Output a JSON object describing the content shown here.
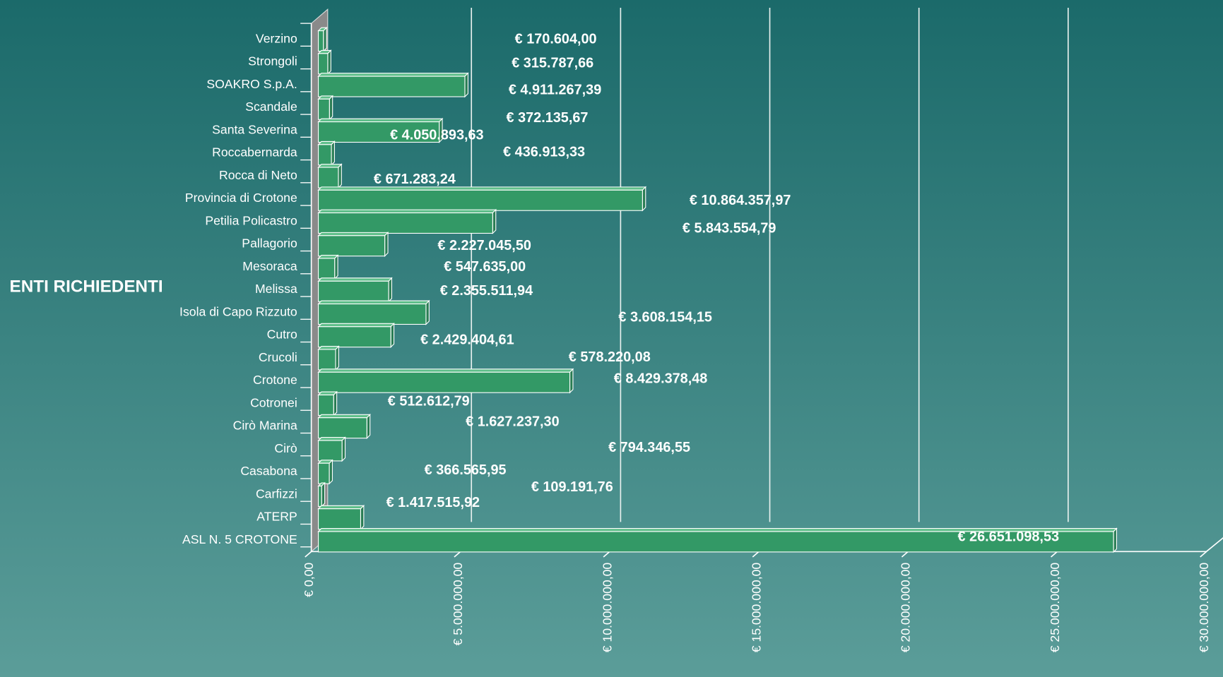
{
  "chart_data": {
    "type": "bar",
    "orientation": "horizontal",
    "y_axis_label": "ENTI RICHIEDENTI",
    "categories": [
      "Verzino",
      "Strongoli",
      "SOAKRO S.p.A.",
      "Scandale",
      "Santa Severina",
      "Roccabernarda",
      "Rocca di Neto",
      "Provincia di Crotone",
      "Petilia Policastro",
      "Pallagorio",
      "Mesoraca",
      "Melissa",
      "Isola di Capo Rizzuto",
      "Cutro",
      "Crucoli",
      "Crotone",
      "Cotronei",
      "Cirò Marina",
      "Cirò",
      "Casabona",
      "Carfizzi",
      "ATERP",
      "ASL N. 5 CROTONE"
    ],
    "values": [
      170604.0,
      315787.66,
      4911267.39,
      372135.67,
      4050893.63,
      436913.33,
      671283.24,
      10864357.97,
      5843554.79,
      2227045.5,
      547635.0,
      2355511.94,
      3608154.15,
      2429404.61,
      578220.08,
      8429378.48,
      512612.79,
      1627237.3,
      794346.55,
      366565.95,
      109191.76,
      1417515.92,
      26651098.53
    ],
    "value_labels": [
      "€ 170.604,00",
      "€ 315.787,66",
      "€ 4.911.267,39",
      "€ 372.135,67",
      "€ 4.050.893,63",
      "€ 436.913,33",
      "€ 671.283,24",
      "€ 10.864.357,97",
      "€ 5.843.554,79",
      "€ 2.227.045,50",
      "€ 547.635,00",
      "€ 2.355.511,94",
      "€ 3.608.154,15",
      "€ 2.429.404,61",
      "€ 578.220,08",
      "€ 8.429.378,48",
      "€ 512.612,79",
      "€ 1.627.237,30",
      "€ 794.346,55",
      "€ 366.565,95",
      "€ 109.191,76",
      "€ 1.417.515,92",
      "€ 26.651.098,53"
    ],
    "color": "#339966",
    "xlim": [
      0,
      30000000
    ],
    "xticks": [
      {
        "value": 0,
        "label": "€ 0,00"
      },
      {
        "value": 5000000,
        "label": "€ 5.000.000,00"
      },
      {
        "value": 10000000,
        "label": "€ 10.000.000,00"
      },
      {
        "value": 15000000,
        "label": "€ 15.000.000,00"
      },
      {
        "value": 20000000,
        "label": "€ 20.000.000,00"
      },
      {
        "value": 25000000,
        "label": "€ 25.000.000,00"
      },
      {
        "value": 30000000,
        "label": "€ 30.000.000,00"
      }
    ],
    "grid": true
  }
}
